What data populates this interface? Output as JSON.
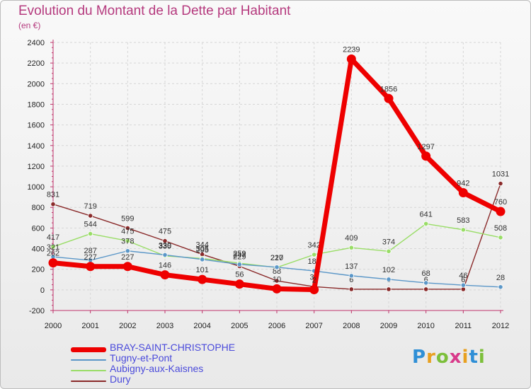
{
  "title": "Evolution du Montant de la Dette par Habitant",
  "unit_label": "(en €)",
  "logo_text": "Proxiti",
  "chart_data": {
    "type": "line",
    "title": "Evolution du Montant de la Dette par Habitant",
    "subtitle": "(en €)",
    "x": [
      "2000",
      "2001",
      "2002",
      "2003",
      "2004",
      "2005",
      "2006",
      "2007",
      "2008",
      "2009",
      "2010",
      "2011",
      "2012"
    ],
    "ylim": [
      -200,
      2400
    ],
    "yticks": [
      "-200",
      "0",
      "200",
      "400",
      "600",
      "800",
      "1000",
      "1200",
      "1400",
      "1600",
      "1800",
      "2000",
      "2200",
      "2400"
    ],
    "grid": true,
    "legend_position": "bottom-left",
    "series": [
      {
        "name": "Dury",
        "color": "#8a2a2a",
        "width": 1.4,
        "values": [
          831,
          719,
          599,
          475,
          344,
          229,
          88,
          31,
          6,
          6,
          6,
          6,
          1031
        ],
        "labels": [
          "831",
          "719",
          "599",
          "475",
          "344",
          "229",
          "88",
          "31",
          "6",
          "6",
          "6",
          "6",
          "1031"
        ]
      },
      {
        "name": "Aubigny-aux-Kaisnes",
        "color": "#99dd66",
        "width": 1.4,
        "values": [
          417,
          544,
          475,
          330,
          305,
          259,
          217,
          342,
          409,
          374,
          641,
          583,
          508
        ],
        "labels": [
          "417",
          "544",
          "475",
          "330",
          "305",
          "259",
          "217",
          "342",
          "409",
          "374",
          "641",
          "583",
          "508"
        ]
      },
      {
        "name": "Tugny-et-Pont",
        "color": "#5b97c8",
        "width": 1.4,
        "values": [
          321,
          287,
          378,
          339,
          295,
          247,
          220,
          184,
          137,
          102,
          68,
          46,
          28
        ],
        "labels": [
          "321",
          "287",
          "378",
          "339",
          "295",
          "247",
          "220",
          "184",
          "137",
          "102",
          "68",
          "46",
          "28"
        ]
      },
      {
        "name": "BRAY-SAINT-CHRISTOPHE",
        "color": "#ee0000",
        "width": 7,
        "values": [
          262,
          227,
          227,
          146,
          101,
          56,
          10,
          2,
          2239,
          1856,
          1297,
          942,
          760
        ],
        "labels": [
          "262",
          "227",
          "227",
          "146",
          "101",
          "56",
          "10",
          "2",
          "2239",
          "1856",
          "1297",
          "942",
          "760"
        ]
      }
    ],
    "legend": [
      "BRAY-SAINT-CHRISTOPHE",
      "Tugny-et-Pont",
      "Aubigny-aux-Kaisnes",
      "Dury"
    ]
  }
}
